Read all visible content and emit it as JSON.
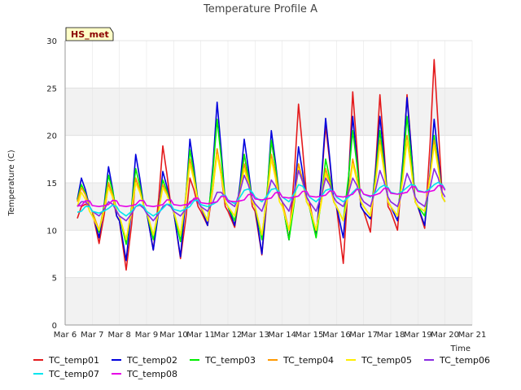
{
  "chart_data": {
    "type": "line",
    "title": "Temperature Profile A",
    "xlabel": "Time",
    "ylabel": "Temperature (C)",
    "badge": "HS_met",
    "ylim": [
      0,
      30
    ],
    "yticks": [
      0,
      5,
      10,
      15,
      20,
      25,
      30
    ],
    "xlim": [
      "2024-03-06",
      "2024-03-21"
    ],
    "x_tick_labels": [
      "Mar 6",
      "Mar 7",
      "Mar 8",
      "Mar 9",
      "Mar 10",
      "Mar 11",
      "Mar 12",
      "Mar 13",
      "Mar 14",
      "Mar 15",
      "Mar 16",
      "Mar 17",
      "Mar 18",
      "Mar 19",
      "Mar 20",
      "Mar 21"
    ],
    "band_color": "#f2f2f2",
    "grid": true,
    "legend_position": "bottom",
    "series": [
      {
        "name": "TC_temp01",
        "color": "#e41a1c",
        "days": [
          "Mar 6",
          "Mar 7",
          "Mar 8",
          "Mar 9",
          "Mar 10",
          "Mar 11",
          "Mar 12",
          "Mar 13",
          "Mar 14",
          "Mar 15",
          "Mar 16",
          "Mar 17",
          "Mar 18",
          "Mar 19",
          "Mar 20"
        ],
        "daily_min": [
          10.0,
          8.6,
          5.8,
          7.9,
          7.0,
          10.5,
          10.3,
          7.4,
          9.0,
          9.5,
          6.5,
          9.8,
          10.0,
          10.2,
          11.0
        ],
        "daily_max": [
          12.5,
          15.0,
          15.5,
          18.9,
          15.5,
          18.5,
          18.0,
          19.5,
          23.3,
          21.0,
          24.6,
          24.3,
          24.3,
          28.0,
          21.0
        ],
        "night": [
          12.0,
          12.0,
          11.0,
          12.0,
          12.0,
          12.0,
          12.0,
          12.0,
          13.0,
          13.0,
          12.5,
          12.0,
          12.0,
          12.5,
          13.0
        ]
      },
      {
        "name": "TC_temp02",
        "color": "#0000dd",
        "days": [
          "Mar 6",
          "Mar 7",
          "Mar 8",
          "Mar 9",
          "Mar 10",
          "Mar 11",
          "Mar 12",
          "Mar 13",
          "Mar 14",
          "Mar 15",
          "Mar 16",
          "Mar 17",
          "Mar 18",
          "Mar 19",
          "Mar 20"
        ],
        "daily_min": [
          11.0,
          9.2,
          6.8,
          7.9,
          7.2,
          10.5,
          10.5,
          7.5,
          9.0,
          9.3,
          9.2,
          11.2,
          11.0,
          10.5,
          12.0
        ],
        "daily_max": [
          15.5,
          16.7,
          18.0,
          16.2,
          19.6,
          23.5,
          19.6,
          20.5,
          18.8,
          21.8,
          22.0,
          22.0,
          24.0,
          21.7,
          15.0
        ],
        "night": [
          12.0,
          12.0,
          11.0,
          12.0,
          12.0,
          12.5,
          12.5,
          12.5,
          13.0,
          12.5,
          12.5,
          12.0,
          12.5,
          12.5,
          13.0
        ]
      },
      {
        "name": "TC_temp03",
        "color": "#00ee00",
        "days": [
          "Mar 6",
          "Mar 7",
          "Mar 8",
          "Mar 9",
          "Mar 10",
          "Mar 11",
          "Mar 12",
          "Mar 13",
          "Mar 14",
          "Mar 15",
          "Mar 16",
          "Mar 17",
          "Mar 18",
          "Mar 19",
          "Mar 20"
        ],
        "daily_min": [
          11.5,
          9.8,
          8.5,
          9.0,
          8.8,
          11.0,
          11.0,
          9.0,
          9.0,
          9.2,
          11.0,
          11.5,
          11.5,
          11.5,
          12.0
        ],
        "daily_max": [
          14.8,
          15.8,
          16.5,
          15.3,
          18.5,
          21.7,
          18.0,
          19.5,
          17.0,
          17.5,
          20.5,
          20.5,
          22.0,
          20.0,
          14.5
        ],
        "night": [
          12.0,
          12.0,
          11.5,
          12.0,
          12.0,
          12.5,
          12.5,
          12.5,
          13.0,
          12.5,
          12.5,
          12.5,
          12.5,
          12.5,
          13.0
        ]
      },
      {
        "name": "TC_temp04",
        "color": "#ff9900",
        "days": [
          "Mar 6",
          "Mar 7",
          "Mar 8",
          "Mar 9",
          "Mar 10",
          "Mar 11",
          "Mar 12",
          "Mar 13",
          "Mar 14",
          "Mar 15",
          "Mar 16",
          "Mar 17",
          "Mar 18",
          "Mar 19",
          "Mar 20"
        ],
        "daily_min": [
          11.5,
          10.0,
          9.0,
          9.5,
          9.5,
          11.0,
          11.5,
          9.5,
          10.0,
          10.0,
          11.0,
          11.5,
          11.5,
          12.0,
          12.5
        ],
        "daily_max": [
          14.5,
          15.0,
          15.5,
          14.8,
          17.5,
          18.6,
          17.0,
          18.0,
          17.0,
          16.5,
          17.5,
          19.5,
          20.0,
          19.5,
          14.8
        ],
        "night": [
          12.0,
          12.0,
          11.5,
          12.0,
          12.0,
          12.5,
          12.5,
          12.5,
          13.0,
          12.5,
          12.5,
          12.5,
          12.5,
          12.5,
          13.0
        ]
      },
      {
        "name": "TC_temp05",
        "color": "#ffee00",
        "days": [
          "Mar 6",
          "Mar 7",
          "Mar 8",
          "Mar 9",
          "Mar 10",
          "Mar 11",
          "Mar 12",
          "Mar 13",
          "Mar 14",
          "Mar 15",
          "Mar 16",
          "Mar 17",
          "Mar 18",
          "Mar 19",
          "Mar 20"
        ],
        "daily_min": [
          11.0,
          10.0,
          9.0,
          9.5,
          9.5,
          11.0,
          11.5,
          9.5,
          10.0,
          10.0,
          11.0,
          11.5,
          11.5,
          12.0,
          12.5
        ],
        "daily_max": [
          14.0,
          14.5,
          15.0,
          14.5,
          17.0,
          18.0,
          16.5,
          17.5,
          16.5,
          16.0,
          17.0,
          19.0,
          19.5,
          19.0,
          14.5
        ],
        "night": [
          11.5,
          11.5,
          11.5,
          12.0,
          12.0,
          12.5,
          12.5,
          12.5,
          12.5,
          12.5,
          12.5,
          12.5,
          12.5,
          12.5,
          13.0
        ]
      },
      {
        "name": "TC_temp06",
        "color": "#8a2be2",
        "days": [
          "Mar 6",
          "Mar 7",
          "Mar 8",
          "Mar 9",
          "Mar 10",
          "Mar 11",
          "Mar 12",
          "Mar 13",
          "Mar 14",
          "Mar 15",
          "Mar 16",
          "Mar 17",
          "Mar 18",
          "Mar 19",
          "Mar 20"
        ],
        "daily_min": [
          12.0,
          11.5,
          11.0,
          11.0,
          11.5,
          12.0,
          12.5,
          12.0,
          12.0,
          12.0,
          12.5,
          12.5,
          12.5,
          12.5,
          13.0
        ],
        "daily_max": [
          13.0,
          13.0,
          12.5,
          12.5,
          13.0,
          14.0,
          15.8,
          15.3,
          16.3,
          15.5,
          15.5,
          16.3,
          16.0,
          16.5,
          16.0
        ],
        "night": [
          12.0,
          12.0,
          11.5,
          11.8,
          12.0,
          12.5,
          13.0,
          12.8,
          13.0,
          13.0,
          13.0,
          13.0,
          13.0,
          13.0,
          13.5
        ]
      },
      {
        "name": "TC_temp07",
        "color": "#00e5ee",
        "days": [
          "Mar 6",
          "Mar 7",
          "Mar 8",
          "Mar 9",
          "Mar 10",
          "Mar 11",
          "Mar 12",
          "Mar 13",
          "Mar 14",
          "Mar 15",
          "Mar 16",
          "Mar 17",
          "Mar 18",
          "Mar 19",
          "Mar 20"
        ],
        "daily_min": [
          11.8,
          11.8,
          11.5,
          11.5,
          12.0,
          12.5,
          12.8,
          13.0,
          13.0,
          13.0,
          13.0,
          13.5,
          13.8,
          14.0,
          14.0
        ],
        "daily_max": [
          12.0,
          12.3,
          12.5,
          12.3,
          12.5,
          13.0,
          14.2,
          14.3,
          14.8,
          14.2,
          14.0,
          14.5,
          14.5,
          14.8,
          14.8
        ],
        "night": [
          12.0,
          12.0,
          12.0,
          12.0,
          12.2,
          12.7,
          13.2,
          13.5,
          13.5,
          13.5,
          13.5,
          13.8,
          14.0,
          14.2,
          14.3
        ]
      },
      {
        "name": "TC_temp08",
        "color": "#e600e6",
        "days": [
          "Mar 6",
          "Mar 7",
          "Mar 8",
          "Mar 9",
          "Mar 10",
          "Mar 11",
          "Mar 12",
          "Mar 13",
          "Mar 14",
          "Mar 15",
          "Mar 16",
          "Mar 17",
          "Mar 18",
          "Mar 19",
          "Mar 20"
        ],
        "daily_min": [
          12.5,
          12.5,
          12.5,
          12.5,
          12.6,
          12.8,
          13.0,
          13.2,
          13.4,
          13.5,
          13.5,
          13.6,
          13.8,
          14.0,
          14.2
        ],
        "daily_max": [
          12.6,
          12.7,
          12.7,
          12.7,
          12.8,
          13.0,
          13.2,
          13.4,
          13.6,
          13.7,
          13.8,
          13.9,
          14.0,
          14.2,
          14.3
        ],
        "night": [
          12.5,
          12.6,
          12.6,
          12.6,
          12.7,
          12.9,
          13.1,
          13.3,
          13.5,
          13.6,
          13.6,
          13.8,
          13.9,
          14.1,
          14.2
        ]
      }
    ]
  }
}
